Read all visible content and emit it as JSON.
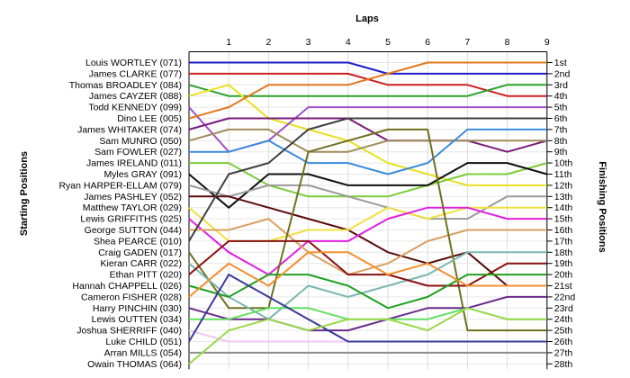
{
  "chart_data": {
    "type": "line",
    "title": "Laps",
    "xlabel": "Laps",
    "ylabel_left": "Starting Positions",
    "ylabel_right": "Finishing Positions",
    "x_ticks": [
      1,
      2,
      3,
      4,
      5,
      6,
      7,
      8,
      9
    ],
    "grid": true,
    "finishing_labels": [
      "1st",
      "2nd",
      "3rd",
      "4th",
      "5th",
      "6th",
      "7th",
      "8th",
      "9th",
      "10th",
      "11th",
      "12th",
      "13th",
      "14th",
      "15th",
      "16th",
      "17th",
      "18th",
      "19th",
      "20th",
      "21st",
      "22nd",
      "23rd",
      "24th",
      "25th",
      "26th",
      "27th",
      "28th"
    ],
    "series": [
      {
        "name": "Louis WORTLEY (071)",
        "color": "#1e1ec8",
        "positions": [
          1,
          1,
          1,
          1,
          1,
          2,
          2,
          2,
          2,
          2
        ]
      },
      {
        "name": "James CLARKE (077)",
        "color": "#cc2020",
        "positions": [
          2,
          2,
          2,
          2,
          2,
          3,
          3,
          3,
          4,
          4
        ]
      },
      {
        "name": "Thomas BROADLEY (084)",
        "color": "#2ca02c",
        "positions": [
          3,
          4,
          4,
          4,
          4,
          4,
          4,
          4,
          3,
          3
        ]
      },
      {
        "name": "James CAYZER (088)",
        "color": "#e8e020",
        "positions": [
          4,
          3,
          6,
          7,
          8,
          10,
          11,
          12,
          12,
          12
        ]
      },
      {
        "name": "Todd KENNEDY (099)",
        "color": "#a050c8",
        "positions": [
          5,
          9,
          8,
          5,
          5,
          5,
          5,
          5,
          5,
          5
        ]
      },
      {
        "name": "Dino LEE (005)",
        "color": "#e07820",
        "positions": [
          6,
          5,
          3,
          3,
          3,
          2,
          1,
          1,
          1,
          1
        ]
      },
      {
        "name": "James WHITAKER (074)",
        "color": "#7a1a7a",
        "positions": [
          7,
          6,
          6,
          6,
          6,
          8,
          8,
          8,
          9,
          8
        ]
      },
      {
        "name": "Sam MUNRO (050)",
        "color": "#a08c5a",
        "positions": [
          8,
          7,
          7,
          9,
          9,
          8,
          8,
          8,
          8,
          8
        ]
      },
      {
        "name": "Sam FOWLER (027)",
        "color": "#3c8cdc",
        "positions": [
          9,
          9,
          8,
          10,
          10,
          11,
          10,
          7,
          7,
          7
        ]
      },
      {
        "name": "James IRELAND (011)",
        "color": "#7ccc3c",
        "positions": [
          10,
          10,
          12,
          13,
          13,
          13,
          12,
          11,
          11,
          10
        ]
      },
      {
        "name": "Myles GRAY (091)",
        "color": "#101010",
        "positions": [
          11,
          14,
          11,
          11,
          12,
          12,
          12,
          10,
          10,
          11
        ]
      },
      {
        "name": "Ryan HARPER-ELLAM (079)",
        "color": "#9a9a9a",
        "positions": [
          12,
          13,
          12,
          12,
          13,
          14,
          15,
          15,
          13,
          13
        ]
      },
      {
        "name": "James PASHLEY (052)",
        "color": "#5a0a0a",
        "positions": [
          13,
          13,
          14,
          15,
          16,
          18,
          19,
          18,
          21,
          21
        ]
      },
      {
        "name": "Matthew TAYLOR (029)",
        "color": "#f0e040",
        "positions": [
          14,
          17,
          17,
          16,
          16,
          14,
          15,
          14,
          14,
          14
        ]
      },
      {
        "name": "Lewis GRIFFITHS (025)",
        "color": "#e020e0",
        "positions": [
          15,
          18,
          20,
          17,
          17,
          15,
          14,
          14,
          15,
          15
        ]
      },
      {
        "name": "George SUTTON (044)",
        "color": "#d8a060",
        "positions": [
          16,
          16,
          15,
          18,
          20,
          19,
          17,
          16,
          16,
          16
        ]
      },
      {
        "name": "Shea PEARCE (010)",
        "color": "#404040",
        "positions": [
          17,
          11,
          10,
          7,
          6,
          6,
          6,
          6,
          6,
          6
        ]
      },
      {
        "name": "Craig GADEN (017)",
        "color": "#707020",
        "positions": [
          18,
          23,
          23,
          9,
          8,
          7,
          7,
          25,
          25,
          25
        ]
      },
      {
        "name": "Kieran CARR (022)",
        "color": "#7ab8b0",
        "positions": [
          19,
          22,
          24,
          21,
          22,
          21,
          20,
          18,
          18,
          18
        ]
      },
      {
        "name": "Ethan PITT (020)",
        "color": "#8a1010",
        "positions": [
          20,
          17,
          17,
          17,
          20,
          20,
          21,
          21,
          19,
          19
        ]
      },
      {
        "name": "Hannah CHAPPELL (026)",
        "color": "#20a020",
        "positions": [
          21,
          22,
          20,
          20,
          21,
          23,
          22,
          20,
          20,
          20
        ]
      },
      {
        "name": "Cameron FISHER (028)",
        "color": "#f09030",
        "positions": [
          22,
          19,
          21,
          18,
          18,
          20,
          19,
          21,
          21,
          21
        ]
      },
      {
        "name": "Harry PINCHIN (030)",
        "color": "#6a2a8a",
        "positions": [
          23,
          24,
          24,
          25,
          25,
          24,
          23,
          23,
          22,
          22
        ]
      },
      {
        "name": "Lewis OUTTEN (034)",
        "color": "#60e060",
        "positions": [
          24,
          24,
          23,
          23,
          24,
          24,
          24,
          23,
          24,
          24
        ]
      },
      {
        "name": "Joshua SHERRIFF (040)",
        "color": "#f0c8f0",
        "positions": [
          25,
          26,
          26,
          26,
          26,
          26,
          26,
          26,
          26,
          26
        ]
      },
      {
        "name": "Luke CHILD (051)",
        "color": "#3a3a9a",
        "positions": [
          26,
          20,
          22,
          24,
          26,
          26,
          26,
          26,
          26,
          26
        ]
      },
      {
        "name": "Arran MILLS (054)",
        "color": "#8c8c8c",
        "positions": [
          27,
          27,
          27,
          27,
          27,
          27,
          27,
          27,
          27,
          27
        ]
      },
      {
        "name": "Owain THOMAS (064)",
        "color": "#9bd84c",
        "positions": [
          28,
          25,
          24,
          25,
          24,
          24,
          25,
          23,
          24,
          24
        ]
      }
    ]
  }
}
